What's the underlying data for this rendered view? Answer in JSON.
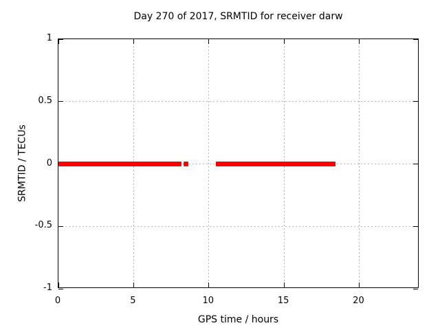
{
  "chart_data": {
    "type": "line",
    "title": "Day 270 of 2017, SRMTID for receiver darw",
    "xlabel": "GPS time / hours",
    "ylabel": "SRMTID / TECUs",
    "xlim": [
      0,
      24
    ],
    "ylim": [
      -1,
      1
    ],
    "xticks": [
      0,
      5,
      10,
      15,
      20
    ],
    "xtick_labels": [
      "0",
      "5",
      "10",
      "15",
      "20"
    ],
    "yticks": [
      -1,
      -0.5,
      0,
      0.5,
      1
    ],
    "ytick_labels": [
      "-1",
      "-0.5",
      "0",
      "0.5",
      "1"
    ],
    "grid": true,
    "legend": "none",
    "series": [
      {
        "name": "SRMTID",
        "color": "#ff0000",
        "y_value": 0,
        "segments_x_hours": [
          [
            0.0,
            8.18
          ],
          [
            8.32,
            8.64
          ],
          [
            10.47,
            18.42
          ]
        ]
      }
    ]
  },
  "colors": {
    "background": "#ffffff",
    "border": "#000000",
    "grid": "#b4b4b4",
    "text": "#000000",
    "line": "#ff0000"
  }
}
